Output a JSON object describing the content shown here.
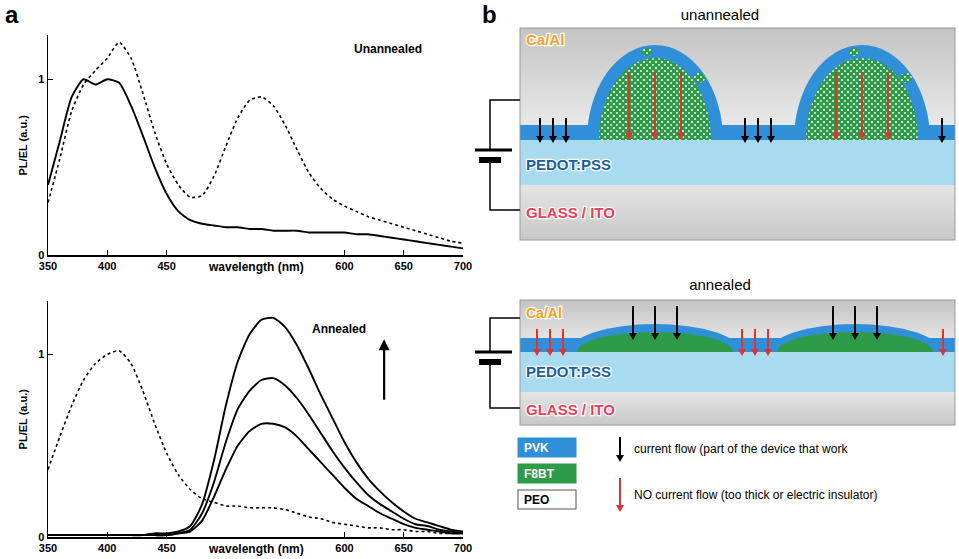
{
  "panels": [
    {
      "label": "a"
    },
    {
      "label": "b"
    }
  ],
  "chart_data": [
    {
      "type": "line",
      "ylabel": "PL/EL (a.u.)",
      "xlabel": "wavelength (nm)",
      "annotations": [
        "Unannealed"
      ],
      "xlim": [
        350,
        700
      ],
      "xticks": [
        350,
        400,
        450,
        600,
        650,
        700
      ],
      "ylim": [
        0,
        1.25
      ],
      "yticks": [
        0,
        1
      ],
      "grid": false,
      "x": [
        350,
        360,
        370,
        380,
        390,
        400,
        410,
        420,
        430,
        440,
        450,
        460,
        470,
        480,
        490,
        500,
        510,
        520,
        530,
        540,
        550,
        560,
        570,
        580,
        590,
        600,
        610,
        620,
        630,
        640,
        650,
        660,
        670,
        680,
        690,
        700
      ],
      "series": [
        {
          "color": "#000000",
          "line_style": "solid",
          "values": [
            0.4,
            0.65,
            0.9,
            1.0,
            0.97,
            1.0,
            0.98,
            0.85,
            0.68,
            0.5,
            0.35,
            0.25,
            0.2,
            0.18,
            0.17,
            0.16,
            0.16,
            0.15,
            0.15,
            0.14,
            0.14,
            0.14,
            0.13,
            0.13,
            0.13,
            0.13,
            0.12,
            0.12,
            0.11,
            0.1,
            0.09,
            0.08,
            0.07,
            0.06,
            0.05,
            0.04
          ]
        },
        {
          "color": "#000000",
          "line_style": "dotted",
          "values": [
            0.3,
            0.55,
            0.82,
            0.97,
            1.05,
            1.12,
            1.21,
            1.12,
            0.92,
            0.7,
            0.52,
            0.4,
            0.33,
            0.34,
            0.45,
            0.62,
            0.78,
            0.88,
            0.9,
            0.85,
            0.74,
            0.6,
            0.47,
            0.38,
            0.32,
            0.28,
            0.25,
            0.22,
            0.2,
            0.18,
            0.16,
            0.14,
            0.12,
            0.1,
            0.08,
            0.07
          ]
        }
      ]
    },
    {
      "type": "line",
      "ylabel": "PL/EL (a.u.)",
      "xlabel": "wavelength (nm)",
      "annotations": [
        "Annealed"
      ],
      "xlim": [
        350,
        700
      ],
      "xticks": [
        350,
        400,
        450,
        600,
        650,
        700
      ],
      "ylim": [
        0,
        1.29
      ],
      "yticks": [
        0,
        1
      ],
      "grid": false,
      "x": [
        350,
        360,
        370,
        380,
        390,
        400,
        410,
        420,
        430,
        440,
        450,
        460,
        470,
        480,
        490,
        500,
        510,
        520,
        530,
        540,
        550,
        560,
        570,
        580,
        590,
        600,
        610,
        620,
        630,
        640,
        650,
        660,
        670,
        680,
        690,
        700
      ],
      "series": [
        {
          "color": "#000000",
          "line_style": "dotted",
          "values": [
            0.37,
            0.55,
            0.72,
            0.86,
            0.95,
            1.0,
            1.02,
            0.95,
            0.8,
            0.62,
            0.46,
            0.34,
            0.26,
            0.21,
            0.19,
            0.17,
            0.17,
            0.16,
            0.16,
            0.16,
            0.15,
            0.13,
            0.11,
            0.1,
            0.08,
            0.07,
            0.06,
            0.05,
            0.05,
            0.04,
            0.04,
            0.03,
            0.03,
            0.02,
            0.02,
            0.02
          ]
        },
        {
          "color": "#000000",
          "line_style": "solid",
          "values": [
            0.01,
            0.01,
            0.01,
            0.01,
            0.01,
            0.01,
            0.01,
            0.01,
            0.01,
            0.02,
            0.02,
            0.03,
            0.06,
            0.18,
            0.42,
            0.72,
            0.96,
            1.11,
            1.19,
            1.2,
            1.15,
            1.05,
            0.92,
            0.78,
            0.65,
            0.52,
            0.41,
            0.32,
            0.25,
            0.19,
            0.14,
            0.1,
            0.08,
            0.06,
            0.04,
            0.03
          ]
        },
        {
          "color": "#000000",
          "line_style": "solid",
          "values": [
            0.01,
            0.01,
            0.01,
            0.01,
            0.01,
            0.01,
            0.01,
            0.01,
            0.01,
            0.01,
            0.01,
            0.02,
            0.04,
            0.13,
            0.3,
            0.52,
            0.7,
            0.8,
            0.86,
            0.87,
            0.83,
            0.76,
            0.67,
            0.57,
            0.47,
            0.38,
            0.3,
            0.23,
            0.18,
            0.14,
            0.1,
            0.07,
            0.06,
            0.04,
            0.03,
            0.02
          ]
        },
        {
          "color": "#000000",
          "line_style": "solid",
          "values": [
            0.01,
            0.01,
            0.01,
            0.01,
            0.01,
            0.01,
            0.01,
            0.01,
            0.01,
            0.01,
            0.01,
            0.02,
            0.03,
            0.09,
            0.22,
            0.37,
            0.5,
            0.58,
            0.62,
            0.62,
            0.6,
            0.55,
            0.48,
            0.41,
            0.34,
            0.27,
            0.21,
            0.17,
            0.13,
            0.1,
            0.07,
            0.05,
            0.04,
            0.03,
            0.02,
            0.02
          ]
        }
      ]
    }
  ],
  "diagram": {
    "devices": [
      {
        "title": "unannealed",
        "layers": [
          {
            "name": "Ca/Al",
            "color": "#f4a020"
          },
          {
            "name": "PEDOT:PSS",
            "color": "#1a5fa0"
          },
          {
            "name": "GLASS / ITO",
            "color": "#e8405a"
          }
        ]
      },
      {
        "title": "annealed",
        "layers": [
          {
            "name": "Ca/Al",
            "color": "#f4a020"
          },
          {
            "name": "PEDOT:PSS",
            "color": "#1a5fa0"
          },
          {
            "name": "GLASS / ITO",
            "color": "#e8405a"
          }
        ]
      }
    ],
    "legend": {
      "materials": [
        {
          "name": "PVK",
          "color": "#2f8fd8"
        },
        {
          "name": "F8BT",
          "color": "#2e9b48"
        },
        {
          "name": "PEO",
          "color": "#ffffff"
        }
      ],
      "arrows": [
        {
          "color": "#000000",
          "text": "current flow (part of the device that work"
        },
        {
          "color": "#e53030",
          "text": "NO current flow (too thick or electric insulator)"
        }
      ]
    }
  }
}
